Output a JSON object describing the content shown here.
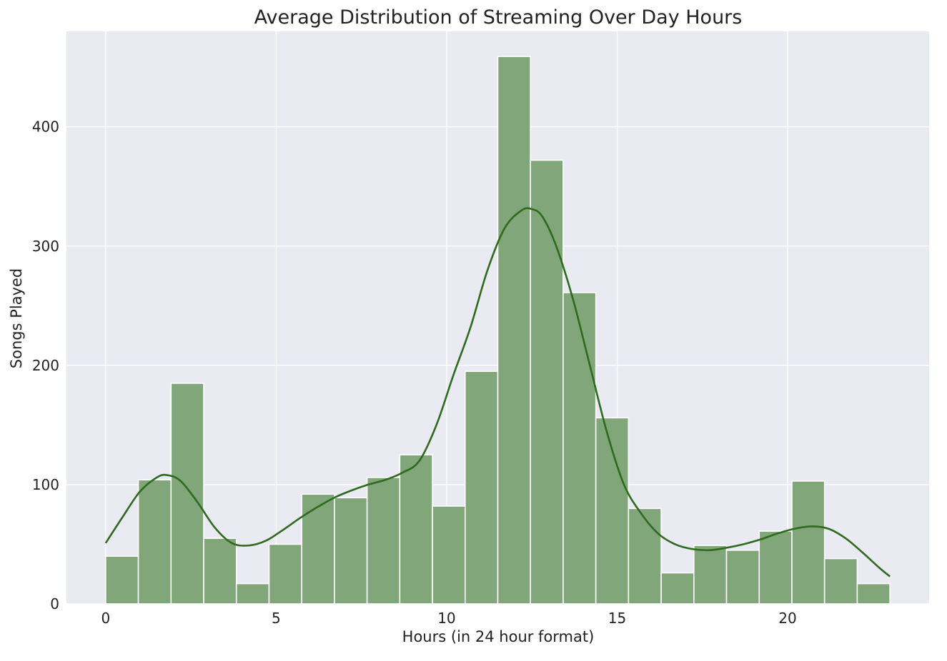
{
  "chart_data": {
    "type": "bar",
    "title": "Average Distribution of Streaming Over Day Hours",
    "xlabel": "Hours (in 24 hour format)",
    "ylabel": "Songs Played",
    "xlim": [
      -1.15,
      24.15
    ],
    "ylim": [
      0,
      480
    ],
    "xticks": [
      0,
      5,
      10,
      15,
      20
    ],
    "yticks": [
      0,
      100,
      200,
      300,
      400
    ],
    "bin_edges": [
      0,
      0.958,
      1.917,
      2.875,
      3.833,
      4.792,
      5.75,
      6.708,
      7.667,
      8.625,
      9.583,
      10.542,
      11.5,
      12.458,
      13.417,
      14.375,
      15.333,
      16.292,
      17.25,
      18.208,
      19.167,
      20.125,
      21.083,
      22.042,
      23
    ],
    "values": [
      40,
      104,
      185,
      55,
      17,
      50,
      92,
      89,
      106,
      125,
      82,
      195,
      459,
      372,
      261,
      156,
      80,
      26,
      49,
      45,
      61,
      103,
      38,
      17
    ],
    "kde": {
      "x": [
        0,
        0.5,
        1,
        1.5,
        1.8,
        2.2,
        2.7,
        3.2,
        3.7,
        4.2,
        4.7,
        5.2,
        5.7,
        6.2,
        6.7,
        7.2,
        7.7,
        8.2,
        8.7,
        9.2,
        9.7,
        10.2,
        10.7,
        11.2,
        11.7,
        12.2,
        12.5,
        12.8,
        13.2,
        13.7,
        14.2,
        14.7,
        15.2,
        15.7,
        16.2,
        16.7,
        17.2,
        17.7,
        18.2,
        18.7,
        19.2,
        19.7,
        20.2,
        20.7,
        21.2,
        21.7,
        22.2,
        22.7,
        23
      ],
      "y": [
        51,
        73,
        94,
        106,
        108,
        103,
        85,
        64,
        51,
        49,
        53,
        62,
        72,
        81,
        89,
        95,
        100,
        104,
        110,
        120,
        150,
        192,
        232,
        280,
        315,
        330,
        331,
        325,
        301,
        256,
        200,
        144,
        100,
        76,
        59,
        50,
        46,
        45,
        47,
        50,
        54,
        59,
        63,
        65,
        63,
        55,
        43,
        30,
        23
      ]
    },
    "colors": {
      "bar_fill": "#80a67a",
      "bar_edge": "#ffffff",
      "kde_line": "#2e6b1e",
      "plot_background": "#eaeaf2",
      "grid": "#ffffff"
    },
    "grid": true
  }
}
